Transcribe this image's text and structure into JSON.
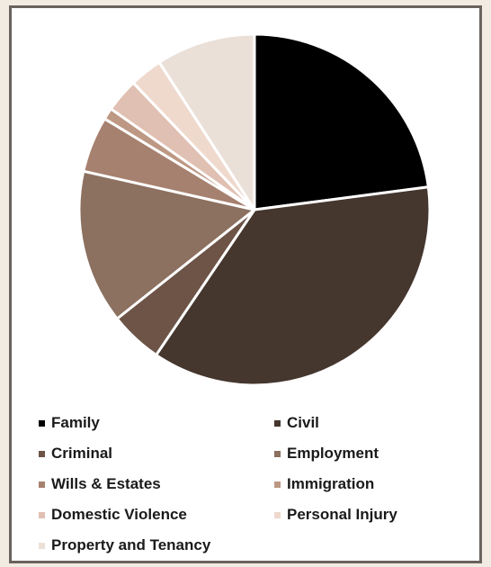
{
  "chart_data": {
    "type": "pie",
    "title": "",
    "slices": [
      {
        "label": "Family",
        "value": 23.6,
        "color": "#000000"
      },
      {
        "label": "Civil",
        "value": 37.6,
        "color": "#45362e"
      },
      {
        "label": "Criminal",
        "value": 5.0,
        "color": "#6d5447"
      },
      {
        "label": "Employment",
        "value": 14.6,
        "color": "#8c7060"
      },
      {
        "label": "Wills & Estates",
        "value": 5.3,
        "color": "#a6816f"
      },
      {
        "label": "Immigration",
        "value": 1.1,
        "color": "#bd9884"
      },
      {
        "label": "Domestic Violence",
        "value": 3.2,
        "color": "#e0c0b2"
      },
      {
        "label": "Personal Injury",
        "value": 3.1,
        "color": "#efd9cd"
      },
      {
        "label": "Property and Tenancy",
        "value": 9.4,
        "color": "#ebe0d8"
      }
    ],
    "legend_position": "bottom"
  }
}
